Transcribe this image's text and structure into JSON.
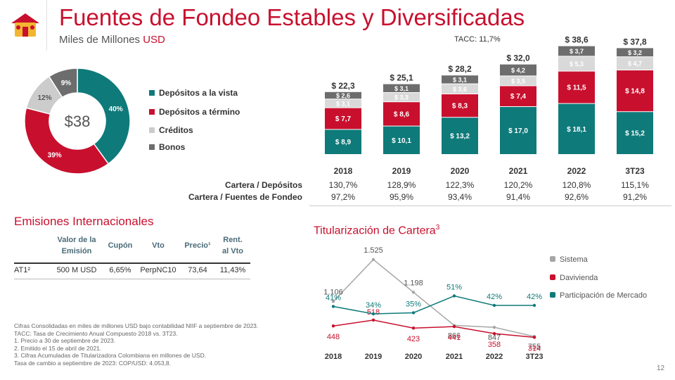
{
  "header": {
    "title": "Fuentes de Fondeo Estables y Diversificadas",
    "subtitle": "Miles de Millones",
    "subtitle_unit": "USD"
  },
  "donut": {
    "center_label": "$38",
    "slices": [
      {
        "name": "Depósitos a la vista",
        "pct_label": "40%",
        "value": 40,
        "color": "#0f7a7a"
      },
      {
        "name": "Depósitos a término",
        "pct_label": "39%",
        "value": 39,
        "color": "#c8102e"
      },
      {
        "name": "Créditos",
        "pct_label": "12%",
        "value": 12,
        "color": "#cccccc"
      },
      {
        "name": "Bonos",
        "pct_label": "9%",
        "value": 9,
        "color": "#6d6d6d"
      }
    ]
  },
  "chart_data": [
    {
      "type": "bar",
      "stacked": true,
      "annotation": "TACC: 11,7%",
      "categories": [
        "2018",
        "2019",
        "2020",
        "2021",
        "2022",
        "3T23"
      ],
      "totals_labels": [
        "$ 22,3",
        "$ 25,1",
        "$ 28,2",
        "$ 32,0",
        "$ 38,6",
        "$ 37,8"
      ],
      "totals": [
        22.3,
        25.1,
        28.2,
        32.0,
        38.6,
        37.8
      ],
      "series": [
        {
          "name": "Depósitos a la vista",
          "color": "#0f7a7a",
          "values": [
            8.9,
            10.1,
            13.2,
            17.0,
            18.1,
            15.2
          ],
          "labels": [
            "$ 8,9",
            "$ 10,1",
            "$ 13,2",
            "$ 17,0",
            "$ 18,1",
            "$ 15,2"
          ]
        },
        {
          "name": "Depósitos a término",
          "color": "#c8102e",
          "values": [
            7.7,
            8.6,
            8.3,
            7.4,
            11.5,
            14.8
          ],
          "labels": [
            "$ 7,7",
            "$ 8,6",
            "$ 8,3",
            "$ 7,4",
            "$ 11,5",
            "$ 14,8"
          ]
        },
        {
          "name": "Créditos",
          "color": "#d9d9d9",
          "values": [
            3.1,
            3.3,
            3.6,
            3.5,
            5.3,
            4.7
          ],
          "labels": [
            "$ 3,1",
            "$ 3,3",
            "$ 3,6",
            "$ 3,5",
            "$ 5,3",
            "$ 4,7"
          ]
        },
        {
          "name": "Bonos",
          "color": "#6d6d6d",
          "values": [
            2.6,
            3.1,
            3.1,
            4.2,
            3.7,
            3.2
          ],
          "labels": [
            "$ 2,6",
            "$ 3,1",
            "$ 3,1",
            "$ 4,2",
            "$ 3,7",
            "$ 3,2"
          ]
        }
      ]
    },
    {
      "type": "line",
      "title": "Titularización de Cartera",
      "title_sup": "3",
      "categories": [
        "2018",
        "2019",
        "2020",
        "2021",
        "2022",
        "3T23"
      ],
      "series": [
        {
          "name": "Sistema",
          "color": "#a6a6a6",
          "values": [
            1106,
            1525,
            1198,
            866,
            847,
            755
          ],
          "labels": [
            "1.106",
            "1.525",
            "1.198",
            "866",
            "847",
            "755"
          ]
        },
        {
          "name": "Davivienda",
          "color": "#c8102e",
          "values": [
            448,
            518,
            423,
            441,
            358,
            314
          ],
          "labels": [
            "448",
            "518",
            "423",
            "441",
            "358",
            "314"
          ]
        },
        {
          "name": "Participación de Mercado",
          "color": "#0f7a7a",
          "values": [
            41,
            34,
            35,
            51,
            42,
            42
          ],
          "labels": [
            "41%",
            "34%",
            "35%",
            "51%",
            "42%",
            "42%"
          ]
        }
      ]
    }
  ],
  "metrics": {
    "rows": [
      {
        "label": "Cartera / Depósitos",
        "values": [
          "130,7%",
          "128,9%",
          "122,3%",
          "120,2%",
          "120,8%",
          "115,1%"
        ]
      },
      {
        "label": "Cartera / Fuentes de Fondeo",
        "values": [
          "97,2%",
          "95,9%",
          "93,4%",
          "91,4%",
          "92,6%",
          "91,2%"
        ]
      }
    ]
  },
  "emisiones": {
    "title": "Emisiones Internacionales",
    "headers": {
      "valor_1": "Valor de la",
      "valor_2": "Emisión",
      "cupon": "Cupón",
      "vto": "Vto",
      "precio": "Precio¹",
      "rent_1": "Rent.",
      "rent_2": "al Vto"
    },
    "row": {
      "name": "AT1²",
      "valor": "500  M USD",
      "cupon": "6,65%",
      "vto": "PerpNC10",
      "precio": "73,64",
      "rent": "11,43%"
    }
  },
  "notes": [
    "Cifras Consolidadas en miles de millones USD bajo contabilidad NIIF a septiembre de 2023.",
    "TACC: Tasa de Crecimiento Anual Compuesto 2018 vs. 3T23.",
    "1. Precio a 30 de septiembre de 2023.",
    "2. Emitido el 15 de abril de 2021.",
    "3. Cifras Acumuladas de Titularizadora Colombiana en millones de USD.",
    "Tasa de cambio a septiembre de 2023: COP/USD: 4.053,8."
  ],
  "page_number": "12"
}
